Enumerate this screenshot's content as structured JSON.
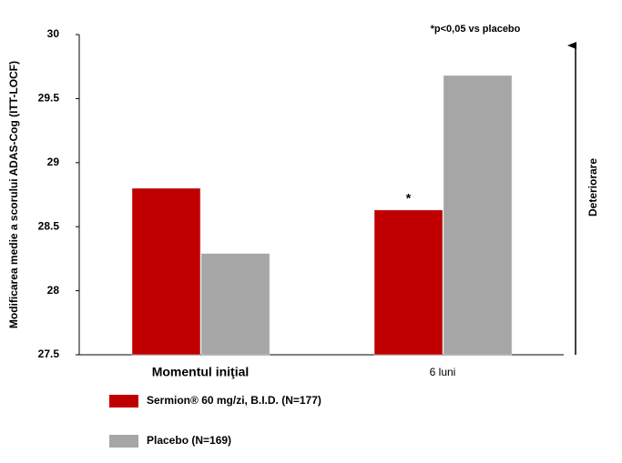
{
  "chart_data": {
    "type": "bar",
    "y_label": "Modificarea medie a scorului ADAS-Cog (ITT-LOCF)",
    "note": "*p<0,05 vs placebo",
    "significance_mark": "*",
    "direction_label": "Deteriorare",
    "categories": [
      "Momentul iniţial",
      "6 luni"
    ],
    "series": [
      {
        "name": "Sermion® 60 mg/zi, B.I.D. (N=177)",
        "color": "#c00000",
        "values": [
          28.8,
          28.63
        ]
      },
      {
        "name": "Placebo (N=169)",
        "color": "#a6a6a6",
        "values": [
          28.29,
          29.68
        ]
      }
    ],
    "ylim": [
      27.5,
      30
    ],
    "yticks": [
      27.5,
      28,
      28.5,
      29,
      29.5,
      30
    ],
    "grid": false
  }
}
